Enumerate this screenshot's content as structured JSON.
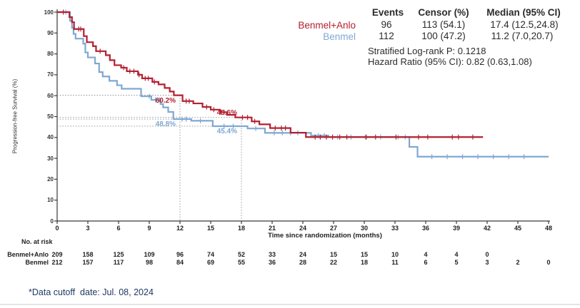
{
  "colors": {
    "benmel_anlo": "#b32031",
    "benmel": "#7fa8d2",
    "axis": "#3a3a3a",
    "dotted": "#8c8c8c",
    "footer_navy": "#1f3864"
  },
  "legend": {
    "groups": [
      {
        "label": "Benmel+Anlo",
        "color_key": "benmel_anlo"
      },
      {
        "label": "Benmel",
        "color_key": "benmel"
      }
    ]
  },
  "summary": {
    "headers": {
      "events": "Events",
      "censor": "Censor (%)",
      "median": "Median (95% CI)"
    },
    "rows": [
      {
        "label": "Benmel+Anlo",
        "events": "96",
        "censor": "113 (54.1)",
        "median": "17.4 (12.5,24.8)"
      },
      {
        "label": "Benmel",
        "events": "112",
        "censor": "100 (47.2)",
        "median": "11.2 (7.0,20.7)"
      }
    ],
    "logrank": "Stratified Log-rank P: 0.1218",
    "hazard": "Hazard Ratio (95% CI): 0.82 (0.63,1.08)"
  },
  "chart_data": {
    "type": "line",
    "subtype": "kaplan-meier-step",
    "x": {
      "label": "Time since randomization (months)",
      "range": [
        0,
        48
      ],
      "ticks": [
        0,
        3,
        6,
        9,
        12,
        15,
        18,
        21,
        24,
        27,
        30,
        33,
        36,
        39,
        42,
        45,
        48
      ]
    },
    "y": {
      "label": "Progression-free Survival (%)",
      "range": [
        0,
        100
      ],
      "ticks": [
        0,
        10,
        20,
        30,
        40,
        50,
        60,
        70,
        80,
        90,
        100
      ]
    },
    "grid": "off",
    "series": [
      {
        "name": "Benmel+Anlo",
        "color_key": "benmel_anlo",
        "end_month": 41.6,
        "steps": [
          [
            0,
            100
          ],
          [
            1.2,
            97.6
          ],
          [
            1.45,
            95.2
          ],
          [
            1.65,
            91.9
          ],
          [
            2.6,
            88.5
          ],
          [
            2.9,
            85.6
          ],
          [
            3.5,
            83.7
          ],
          [
            3.8,
            81.3
          ],
          [
            4.75,
            79.4
          ],
          [
            5.15,
            77.0
          ],
          [
            5.6,
            74.6
          ],
          [
            6.25,
            73.4
          ],
          [
            6.8,
            71.7
          ],
          [
            7.9,
            70.0
          ],
          [
            8.3,
            68.3
          ],
          [
            9.3,
            66.6
          ],
          [
            9.9,
            65.4
          ],
          [
            10.5,
            63.7
          ],
          [
            11.0,
            62.0
          ],
          [
            11.4,
            60.2
          ],
          [
            12.25,
            57.4
          ],
          [
            13.3,
            56.3
          ],
          [
            14.2,
            54.6
          ],
          [
            15.0,
            53.3
          ],
          [
            15.9,
            52.1
          ],
          [
            16.6,
            50.8
          ],
          [
            17.4,
            49.6
          ],
          [
            19.0,
            47.7
          ],
          [
            19.75,
            46.3
          ],
          [
            20.8,
            44.5
          ],
          [
            22.8,
            42.3
          ],
          [
            24.3,
            40.2
          ]
        ],
        "censor_months": [
          0.6,
          2.1,
          2.3,
          4.2,
          6.5,
          7.1,
          7.5,
          8.0,
          8.6,
          8.9,
          9.5,
          12.6,
          12.9,
          14.6,
          15.3,
          16.0,
          16.3,
          18.1,
          18.6,
          19.3,
          21.3,
          21.9,
          22.3,
          25.2,
          25.7,
          26.3,
          26.9,
          27.6,
          28.3,
          30.2,
          31.1,
          33.1,
          35.3,
          36.2,
          38.6,
          39.2,
          40.6
        ]
      },
      {
        "name": "Benmel",
        "color_key": "benmel",
        "end_month": 48,
        "steps": [
          [
            0,
            100
          ],
          [
            1.25,
            95.8
          ],
          [
            1.45,
            92.5
          ],
          [
            1.6,
            89.6
          ],
          [
            1.8,
            87.3
          ],
          [
            2.55,
            84.9
          ],
          [
            2.75,
            80.7
          ],
          [
            3.0,
            78.3
          ],
          [
            3.7,
            75.4
          ],
          [
            4.1,
            71.3
          ],
          [
            4.45,
            69.2
          ],
          [
            5.1,
            67.1
          ],
          [
            5.85,
            65.0
          ],
          [
            6.3,
            63.3
          ],
          [
            8.2,
            59.7
          ],
          [
            9.2,
            58.0
          ],
          [
            10.1,
            56.0
          ],
          [
            10.35,
            54.4
          ],
          [
            10.85,
            52.2
          ],
          [
            11.35,
            48.8
          ],
          [
            13.1,
            48.0
          ],
          [
            15.2,
            45.4
          ],
          [
            18.6,
            44.3
          ],
          [
            20.3,
            42.2
          ],
          [
            24.8,
            40.9
          ],
          [
            26.5,
            40.2
          ],
          [
            34.4,
            35.5
          ],
          [
            35.2,
            30.8
          ]
        ],
        "censor_months": [
          0.85,
          9.0,
          9.6,
          10.0,
          12.2,
          12.6,
          14.0,
          16.3,
          17.2,
          19.4,
          21.2,
          22.0,
          22.8,
          23.5,
          25.5,
          26.1,
          27.4,
          28.7,
          30.1,
          31.6,
          33.3,
          34.0,
          36.6,
          38.1,
          39.6,
          41.1,
          42.6,
          44.1,
          45.6
        ]
      }
    ],
    "reference_points": [
      {
        "label": "60.2%",
        "month": 12,
        "value": 60.2,
        "color_key": "benmel_anlo"
      },
      {
        "label": "48.8%",
        "month": 12,
        "value": 48.8,
        "color_key": "benmel"
      },
      {
        "label": "49.6%",
        "month": 18,
        "value": 49.6,
        "color_key": "benmel_anlo"
      },
      {
        "label": "45.4%",
        "month": 18,
        "value": 45.4,
        "color_key": "benmel"
      }
    ]
  },
  "risk_table": {
    "title": "No. at risk",
    "rows": [
      {
        "label": "Benmel+Anlo",
        "values": [
          209,
          158,
          125,
          109,
          96,
          74,
          52,
          33,
          24,
          15,
          15,
          10,
          4,
          4,
          0
        ]
      },
      {
        "label": "Benmel",
        "values": [
          212,
          157,
          117,
          98,
          84,
          69,
          55,
          36,
          28,
          22,
          18,
          11,
          6,
          5,
          3,
          2,
          0
        ]
      }
    ]
  },
  "footer": {
    "note": "*Data cutoff  date: Jul. 08, 2024"
  }
}
